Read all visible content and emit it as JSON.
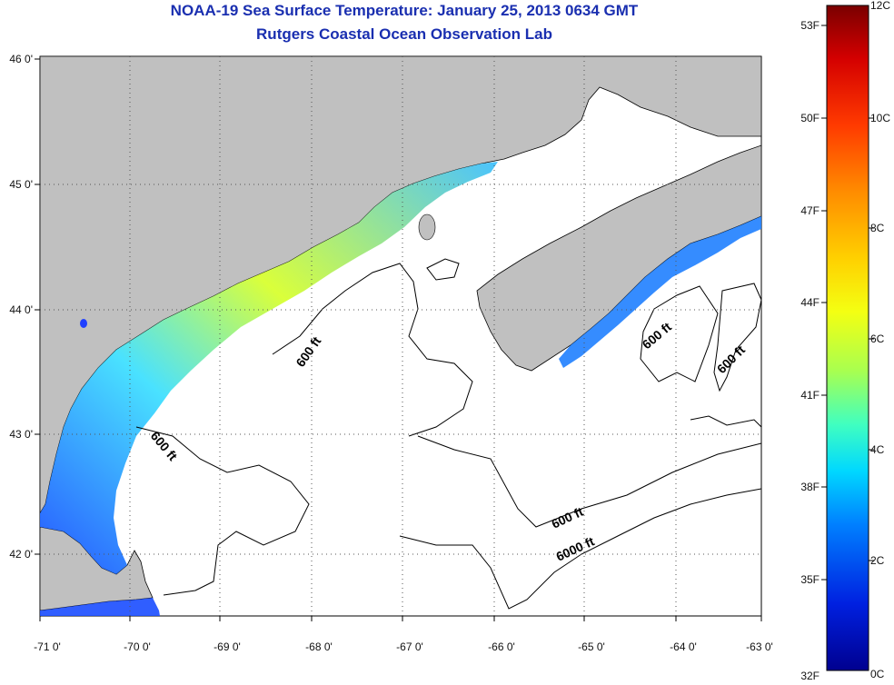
{
  "title_line1": "NOAA-19 Sea Surface Temperature:  January 25, 2013 0634 GMT",
  "title_line2": "Rutgers Coastal Ocean Observation Lab",
  "longitude_labels": [
    "-71 0'",
    "-70 0'",
    "-69 0'",
    "-68 0'",
    "-67 0'",
    "-66 0'",
    "-65 0'",
    "-64 0'",
    "-63 0'"
  ],
  "latitude_labels": [
    "46 0'",
    "45 0'",
    "44 0'",
    "43 0'",
    "42 0'"
  ],
  "contour_labels": [
    "600 ft",
    "600 ft",
    "600 ft",
    "600 ft",
    "600 ft",
    "6000 ft"
  ],
  "colorbar": {
    "fahrenheit_labels": [
      "53F",
      "50F",
      "47F",
      "44F",
      "41F",
      "38F",
      "35F",
      "32F"
    ],
    "celsius_labels": [
      "12C",
      "10C",
      "8C",
      "6C",
      "4C",
      "2C",
      "0C"
    ],
    "colors": [
      "#7a0000",
      "#d40000",
      "#ff3a00",
      "#ff8c00",
      "#ffd000",
      "#f4ff12",
      "#a8ff50",
      "#40ffc0",
      "#00d8ff",
      "#0080ff",
      "#0020e0",
      "#00008f"
    ]
  },
  "colors": {
    "land": "#c0c0c0",
    "ocean_no_data": "#ffffff",
    "title": "#1a2fb0"
  }
}
